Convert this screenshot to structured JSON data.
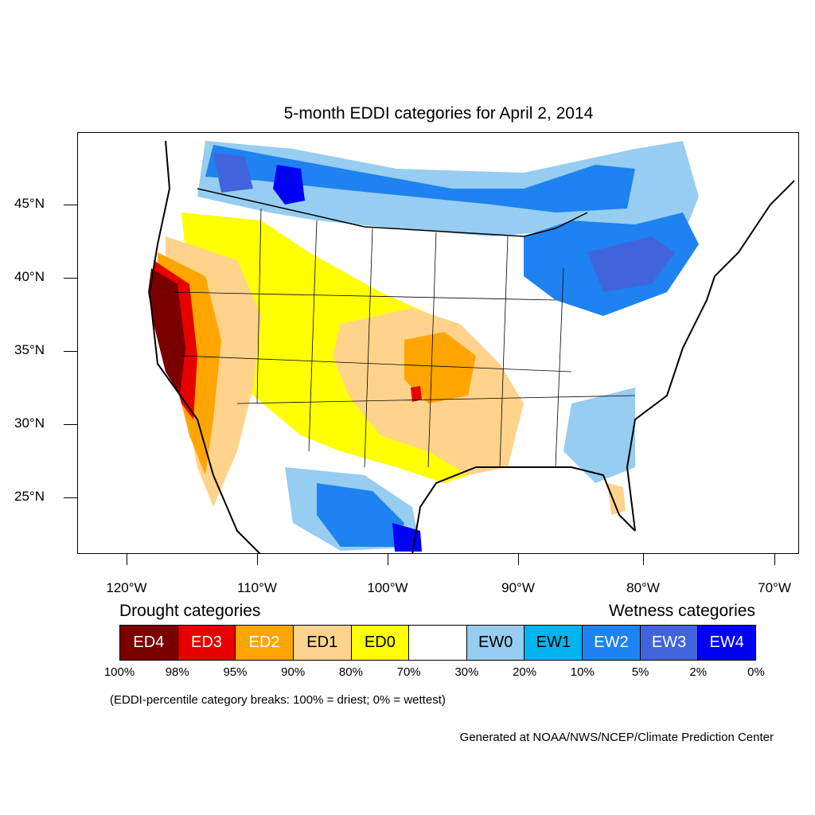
{
  "title": "5-month EDDI categories for April 2, 2014",
  "lat_labels": [
    "45°N",
    "40°N",
    "35°N",
    "30°N",
    "25°N"
  ],
  "lon_labels": [
    "120°W",
    "110°W",
    "100°W",
    "90°W",
    "80°W",
    "70°W"
  ],
  "legend": {
    "drought_heading": "Drought categories",
    "wetness_heading": "Wetness categories",
    "categories": [
      {
        "label": "ED4",
        "color": "#7a0000",
        "text_color": "#ffffff"
      },
      {
        "label": "ED3",
        "color": "#e60000",
        "text_color": "#ffffff"
      },
      {
        "label": "ED2",
        "color": "#ffa500",
        "text_color": "#ffffff"
      },
      {
        "label": "ED1",
        "color": "#ffd38c",
        "text_color": "#000000"
      },
      {
        "label": "ED0",
        "color": "#ffff00",
        "text_color": "#000000"
      },
      {
        "label": "",
        "color": "#ffffff",
        "text_color": "#000000"
      },
      {
        "label": "EW0",
        "color": "#96cdf0",
        "text_color": "#000000"
      },
      {
        "label": "EW1",
        "color": "#00b4f0",
        "text_color": "#000000"
      },
      {
        "label": "EW2",
        "color": "#1e82f0",
        "text_color": "#ffffff"
      },
      {
        "label": "EW3",
        "color": "#4164dc",
        "text_color": "#ffffff"
      },
      {
        "label": "EW4",
        "color": "#0000f5",
        "text_color": "#ffffff"
      }
    ],
    "percent_breaks": [
      "100%",
      "98%",
      "95%",
      "90%",
      "80%",
      "70%",
      "30%",
      "20%",
      "10%",
      "5%",
      "2%",
      "0%"
    ]
  },
  "note": "(EDDI-percentile category breaks: 100% = driest; 0% = wettest)",
  "credit": "Generated at NOAA/NWS/NCEP/Climate Prediction Center"
}
